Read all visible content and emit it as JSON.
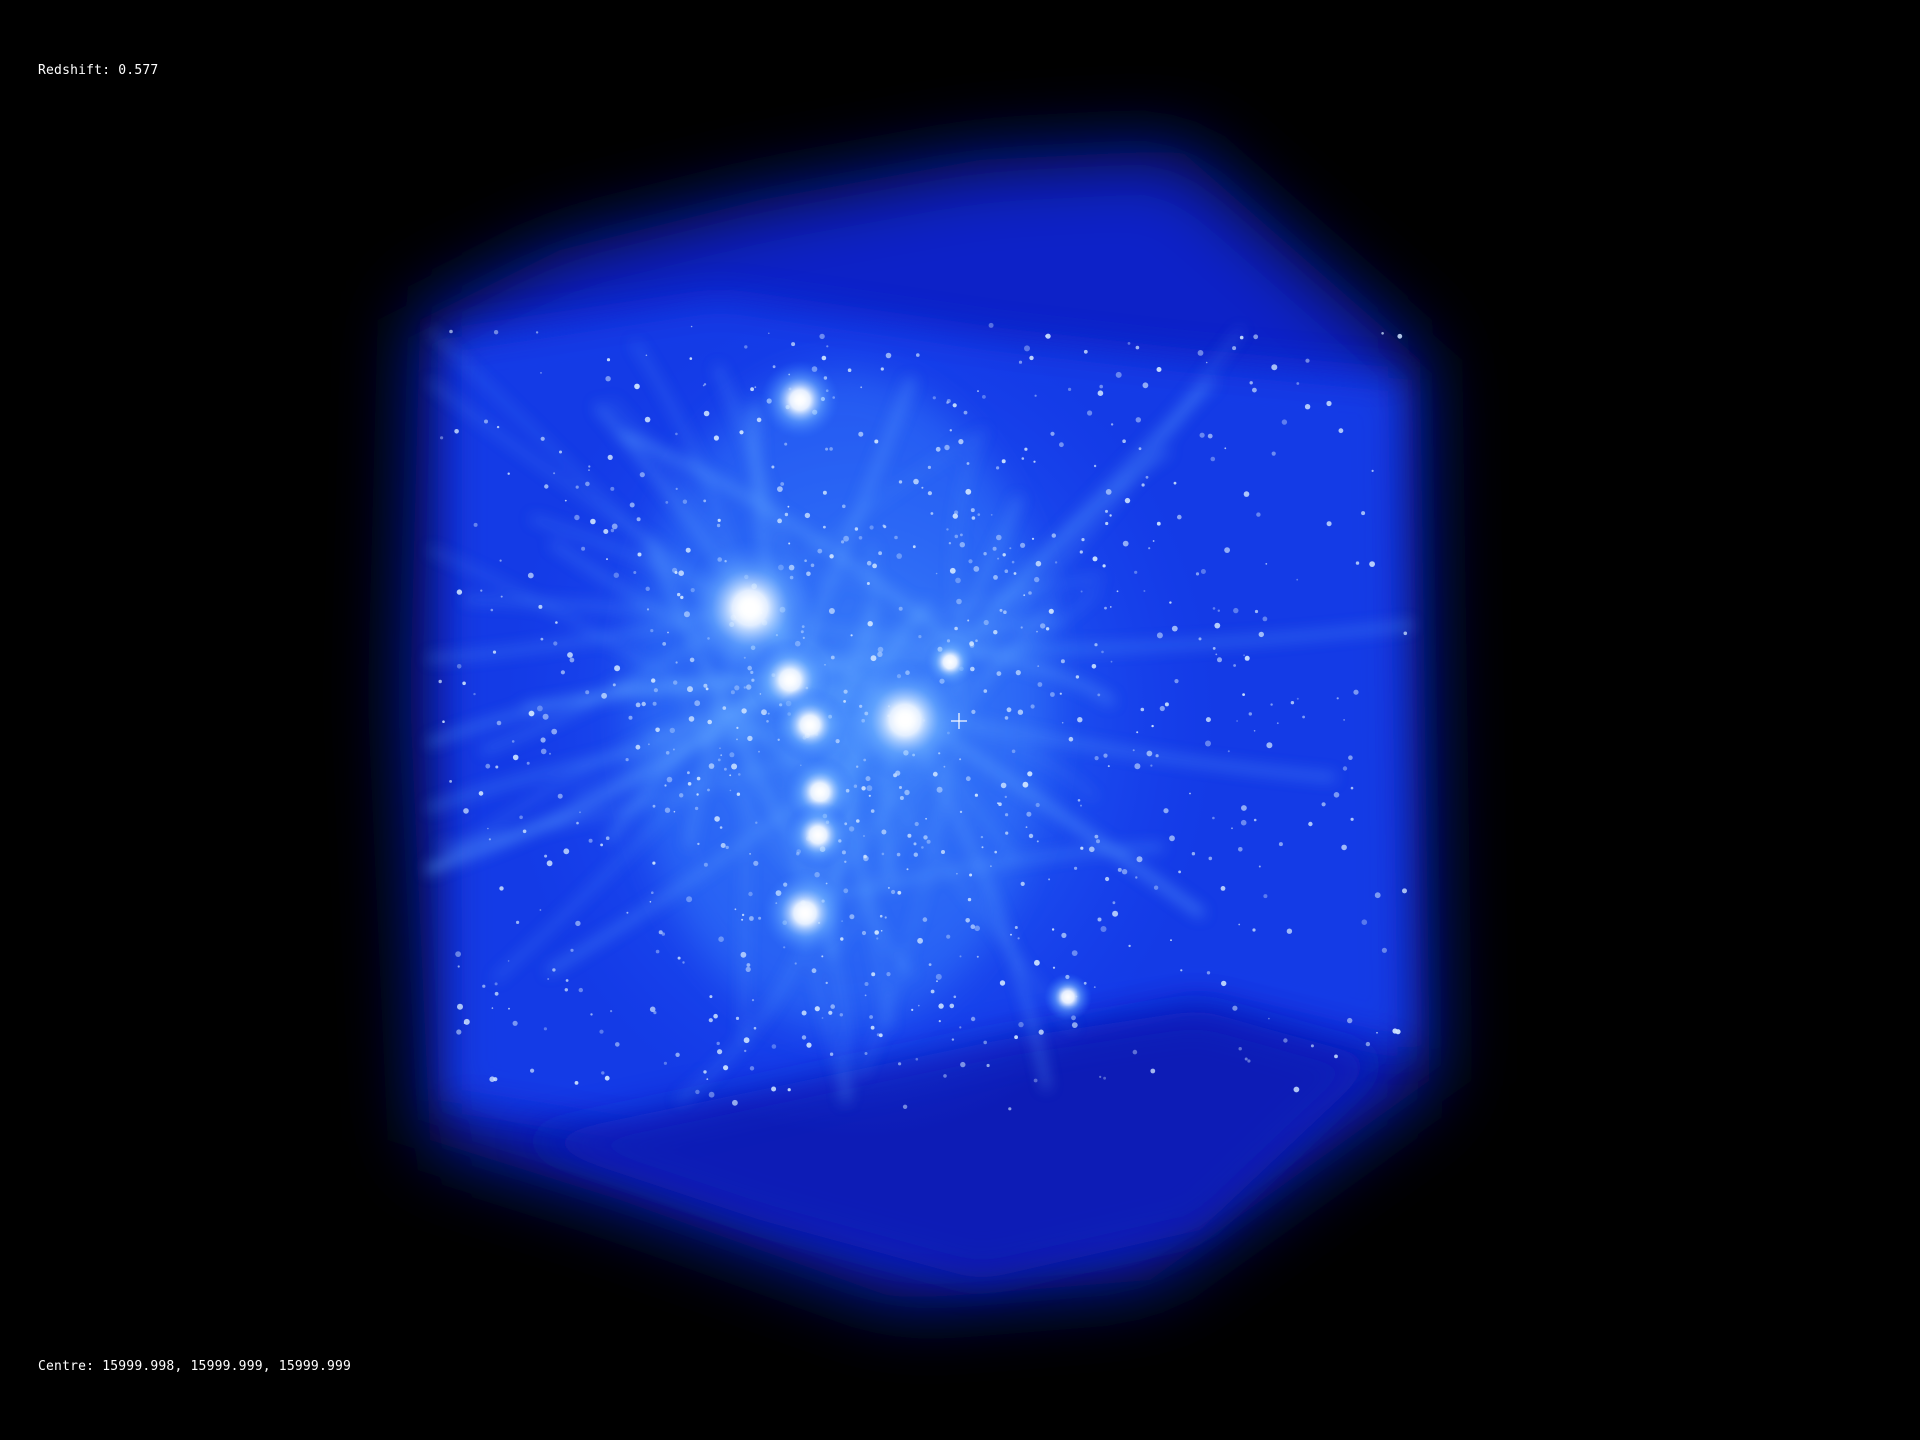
{
  "hud": {
    "redshift_label": "Redshift:",
    "redshift_value": "0.577",
    "centre_label": "Centre:",
    "centre_value": "15999.998, 15999.999, 15999.999"
  },
  "colors": {
    "background": "#000000",
    "glow_outer": "#0a1fd0",
    "glow_mid": "#1f55ff",
    "glow_inner": "#5aa6ff",
    "core": "#ffffff",
    "text": "#ffffff"
  },
  "visualization": {
    "subject": "cosmic-web-simulation-cube",
    "crosshair_icon": "crosshair-icon"
  }
}
